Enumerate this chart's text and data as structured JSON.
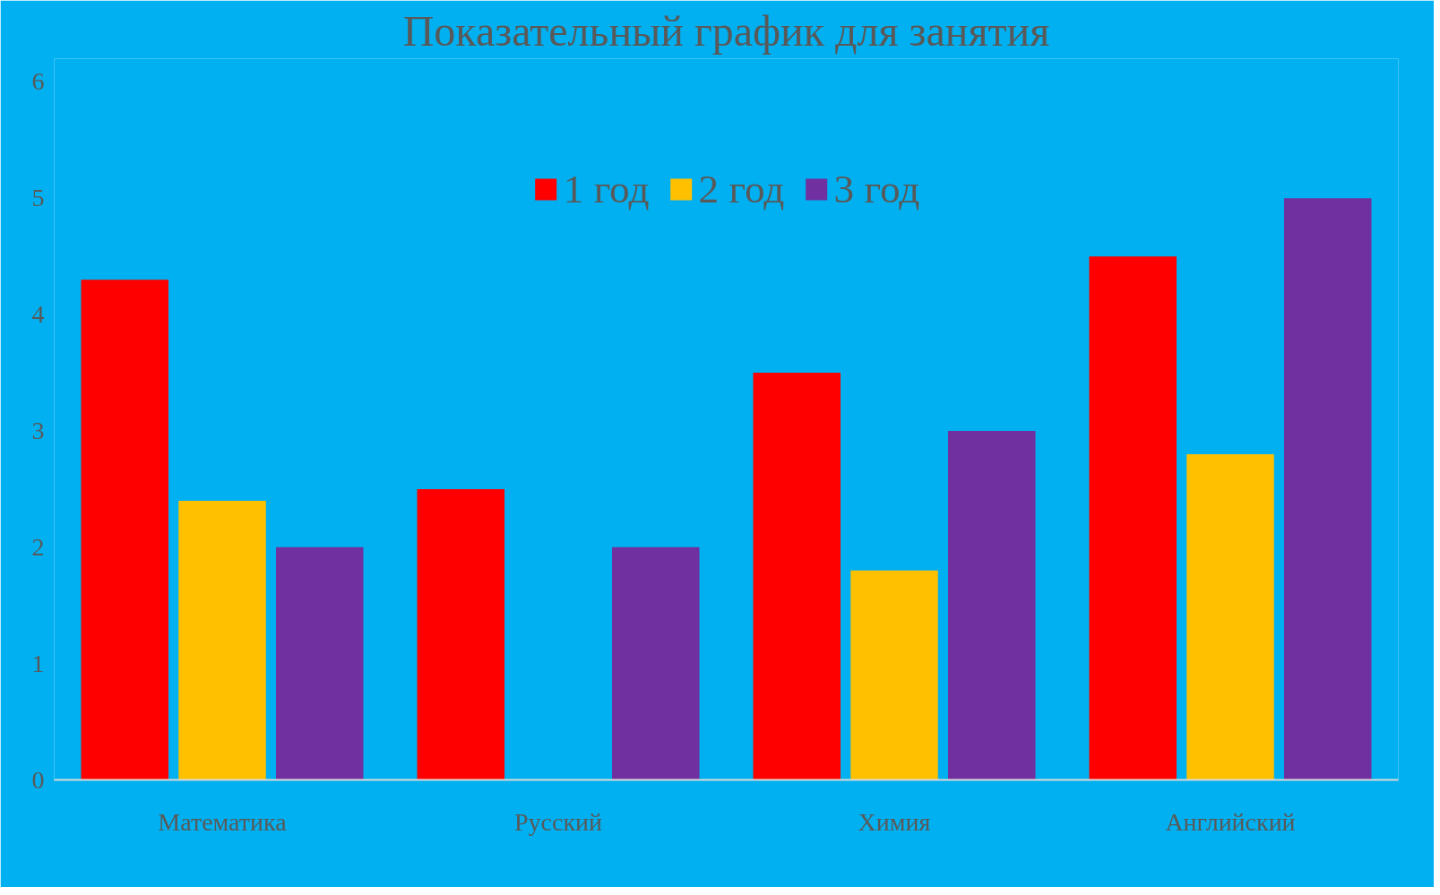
{
  "chart_data": {
    "type": "bar",
    "title": "Показательный график для занятия",
    "categories": [
      "Математика",
      "Русский",
      "Химия",
      "Английский"
    ],
    "series": [
      {
        "name": "1 год",
        "color": "#ff0000",
        "values": [
          4.3,
          2.5,
          3.5,
          4.5
        ]
      },
      {
        "name": "2 год",
        "color": "#ffc000",
        "values": [
          2.4,
          null,
          1.8,
          2.8
        ]
      },
      {
        "name": "3 год",
        "color": "#7030a0",
        "values": [
          2.0,
          2.0,
          3.0,
          5.0
        ]
      }
    ],
    "ylim": [
      0,
      6.2
    ],
    "yticks": [
      0,
      1,
      2,
      3,
      4,
      5,
      6
    ],
    "grid": false,
    "legend": "top"
  }
}
